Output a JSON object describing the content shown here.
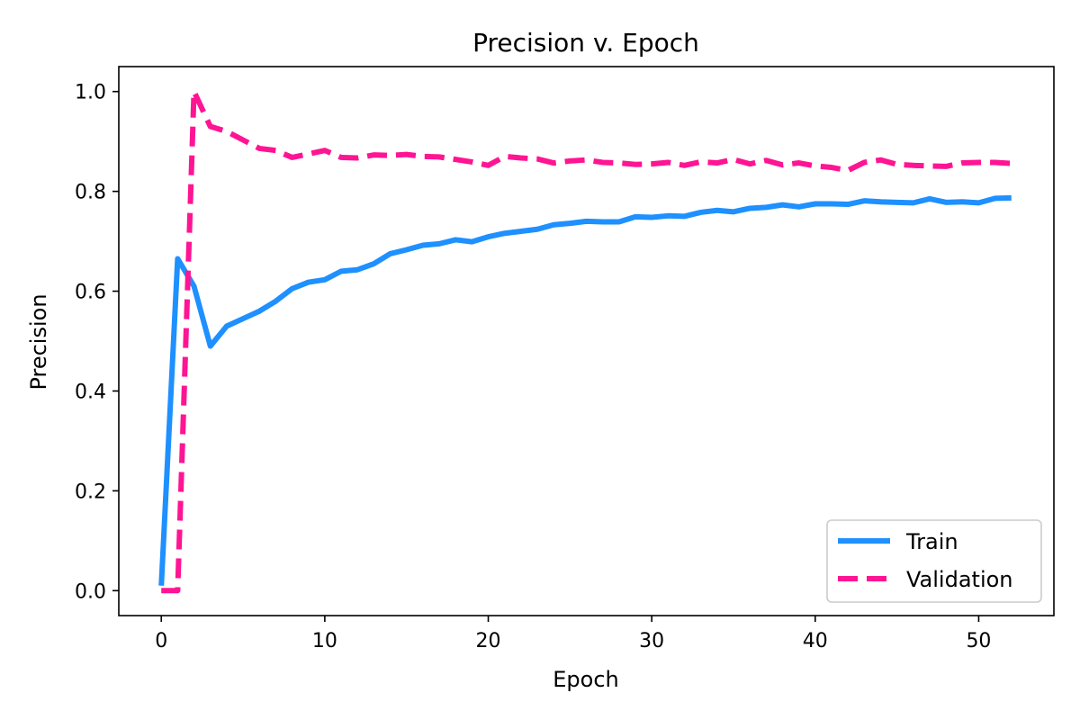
{
  "chart_data": {
    "type": "line",
    "title": "Precision v. Epoch",
    "xlabel": "Epoch",
    "ylabel": "Precision",
    "xlim": [
      -2.6,
      54.6
    ],
    "ylim": [
      -0.05,
      1.05
    ],
    "xticks": [
      0,
      10,
      20,
      30,
      40,
      50
    ],
    "yticks": [
      0.0,
      0.2,
      0.4,
      0.6,
      0.8,
      1.0
    ],
    "xtick_labels": [
      "0",
      "10",
      "20",
      "30",
      "40",
      "50"
    ],
    "ytick_labels": [
      "0.0",
      "0.2",
      "0.4",
      "0.6",
      "0.8",
      "1.0"
    ],
    "grid": false,
    "legend_position": "lower-right",
    "x": [
      0,
      1,
      2,
      3,
      4,
      5,
      6,
      7,
      8,
      9,
      10,
      11,
      12,
      13,
      14,
      15,
      16,
      17,
      18,
      19,
      20,
      21,
      22,
      23,
      24,
      25,
      26,
      27,
      28,
      29,
      30,
      31,
      32,
      33,
      34,
      35,
      36,
      37,
      38,
      39,
      40,
      41,
      42,
      43,
      44,
      45,
      46,
      47,
      48,
      49,
      50,
      51,
      52
    ],
    "series": [
      {
        "name": "Train",
        "color": "#1e90ff",
        "style": "solid",
        "values": [
          0.01,
          0.665,
          0.61,
          0.49,
          0.53,
          0.545,
          0.56,
          0.58,
          0.605,
          0.618,
          0.623,
          0.64,
          0.643,
          0.655,
          0.675,
          0.683,
          0.692,
          0.695,
          0.703,
          0.699,
          0.709,
          0.716,
          0.72,
          0.724,
          0.733,
          0.736,
          0.74,
          0.739,
          0.739,
          0.749,
          0.748,
          0.751,
          0.75,
          0.758,
          0.762,
          0.759,
          0.766,
          0.768,
          0.773,
          0.769,
          0.775,
          0.775,
          0.774,
          0.781,
          0.779,
          0.778,
          0.777,
          0.785,
          0.778,
          0.779,
          0.777,
          0.786,
          0.787
        ]
      },
      {
        "name": "Validation",
        "color": "#ff1493",
        "style": "dashed",
        "values": [
          0.0,
          0.0,
          1.0,
          0.93,
          0.92,
          0.903,
          0.886,
          0.882,
          0.868,
          0.875,
          0.882,
          0.868,
          0.867,
          0.873,
          0.872,
          0.874,
          0.87,
          0.869,
          0.864,
          0.859,
          0.852,
          0.87,
          0.867,
          0.865,
          0.857,
          0.861,
          0.863,
          0.858,
          0.857,
          0.854,
          0.855,
          0.858,
          0.852,
          0.859,
          0.857,
          0.864,
          0.855,
          0.862,
          0.853,
          0.857,
          0.851,
          0.848,
          0.842,
          0.858,
          0.863,
          0.854,
          0.852,
          0.851,
          0.85,
          0.857,
          0.858,
          0.858,
          0.856
        ]
      }
    ]
  }
}
